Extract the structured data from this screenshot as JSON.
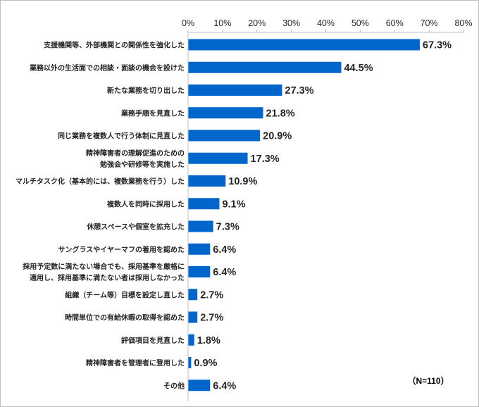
{
  "chart_data": {
    "type": "bar",
    "orientation": "horizontal",
    "categories": [
      [
        "支援機関等、外部機関との関係性を強化した"
      ],
      [
        "業務以外の生活面での相談・面談の機会を設けた"
      ],
      [
        "新たな業務を切り出した"
      ],
      [
        "業務手順を見直した"
      ],
      [
        "同じ業務を複数人で行う体制に見直した"
      ],
      [
        "精神障害者の理解促進のための",
        "勉強会や研修等を実施した"
      ],
      [
        "マルチタスク化（基本的には、複数業務を行う）した"
      ],
      [
        "複数人を同時に採用した"
      ],
      [
        "休憩スペースや個室を拡充した"
      ],
      [
        "サングラスやイヤーマフの着用を認めた"
      ],
      [
        "採用予定数に満たない場合でも、採用基準を厳格に",
        "適用し、採用基準に満たない者は採用しなかった"
      ],
      [
        "組織（チーム等）目標を設定し直した"
      ],
      [
        "時間単位での有給休暇の取得を認めた"
      ],
      [
        "評価項目を見直した"
      ],
      [
        "精神障害者を管理者に登用した"
      ],
      [
        "その他"
      ]
    ],
    "values": [
      67.3,
      44.5,
      27.3,
      21.8,
      20.9,
      17.3,
      10.9,
      9.1,
      7.3,
      6.4,
      6.4,
      2.7,
      2.7,
      1.8,
      0.9,
      6.4
    ],
    "value_labels": [
      "67.3%",
      "44.5%",
      "27.3%",
      "21.8%",
      "20.9%",
      "17.3%",
      "10.9%",
      "9.1%",
      "7.3%",
      "6.4%",
      "6.4%",
      "2.7%",
      "2.7%",
      "1.8%",
      "0.9%",
      "6.4%"
    ],
    "x_ticks": [
      "0%",
      "10%",
      "20%",
      "30%",
      "40%",
      "50%",
      "60%",
      "70%",
      "80%"
    ],
    "xlim": [
      0,
      80
    ],
    "axis_position": "top",
    "grid": false,
    "bar_color": "#0066cc",
    "annotation": "（N=110）"
  }
}
